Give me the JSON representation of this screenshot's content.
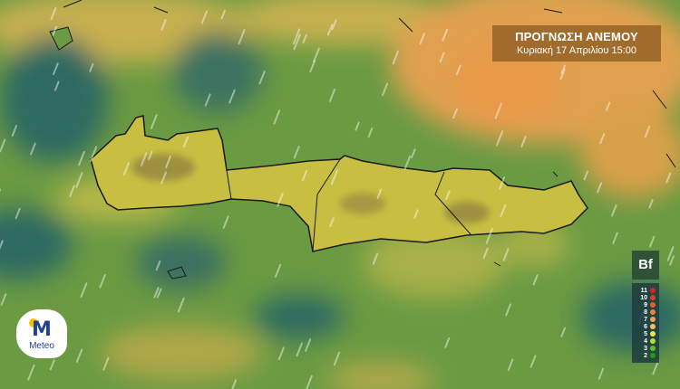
{
  "header": {
    "title": "ΠΡΟΓΝΩΣΗ ΑΝΕΜΟΥ",
    "subtitle": "Κυριακή 17 Απριλίου 15:00"
  },
  "legend": {
    "unit": "Bf",
    "levels": [
      {
        "label": "11",
        "color": "#e02020"
      },
      {
        "label": "10",
        "color": "#e63a24"
      },
      {
        "label": "9",
        "color": "#ee5a2c"
      },
      {
        "label": "8",
        "color": "#f08238"
      },
      {
        "label": "7",
        "color": "#f0a048"
      },
      {
        "label": "6",
        "color": "#f2c060"
      },
      {
        "label": "5",
        "color": "#f0e840"
      },
      {
        "label": "4",
        "color": "#b8e030"
      },
      {
        "label": "3",
        "color": "#60c020"
      },
      {
        "label": "2",
        "color": "#1f9a20"
      }
    ]
  },
  "logo": {
    "text": "Meteo",
    "brand_color": "#1f3f9a",
    "sun_color": "#f5c000"
  },
  "map_colors": {
    "sea_green": "#6a9a42",
    "calm_teal": "#2f6a62",
    "moderate_yellow": "#b8b848",
    "strong_orange": "#e0a050",
    "land": "#c8c040"
  }
}
